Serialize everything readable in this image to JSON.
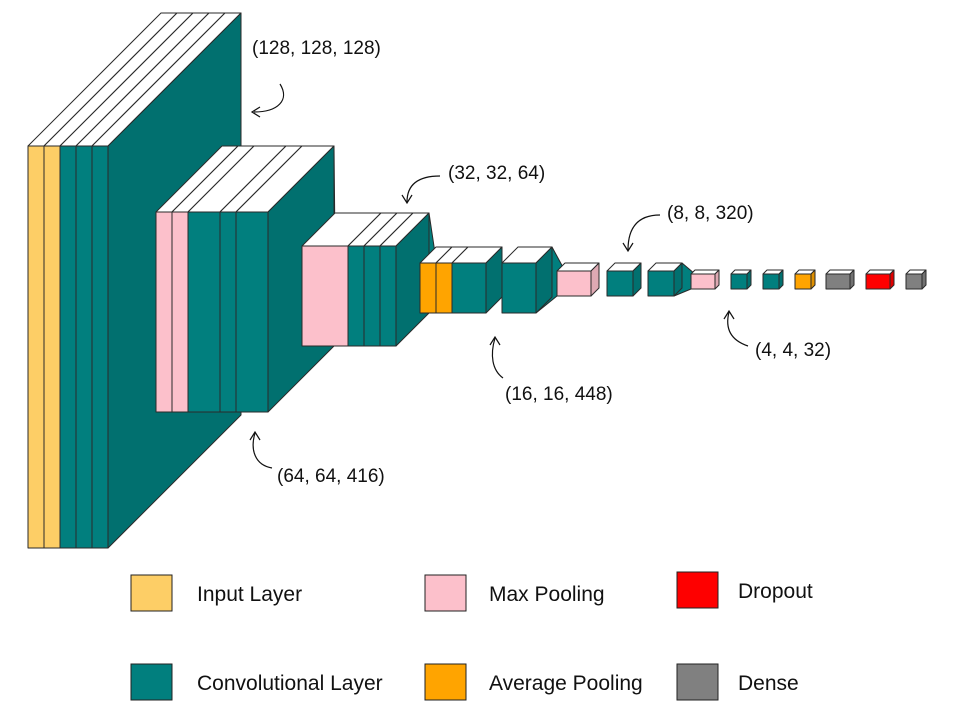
{
  "colors": {
    "input": "#FDCE66",
    "conv": "#017F7E",
    "maxpool": "#FCC0CB",
    "avgpool": "#FFA400",
    "dropout": "#FE0000",
    "dense": "#808080"
  },
  "dimension_labels": [
    "(128, 128, 128)",
    "(64, 64, 416)",
    "(32, 32, 64)",
    "(16, 16, 448)",
    "(8, 8, 320)",
    "(4, 4, 32)"
  ],
  "legend": [
    {
      "label": "Input Layer",
      "color_key": "input"
    },
    {
      "label": "Max Pooling",
      "color_key": "maxpool"
    },
    {
      "label": "Dropout",
      "color_key": "dropout"
    },
    {
      "label": "Convolutional Layer",
      "color_key": "conv"
    },
    {
      "label": "Average Pooling",
      "color_key": "avgpool"
    },
    {
      "label": "Dense",
      "color_key": "dense"
    }
  ],
  "layers": [
    {
      "type": "input"
    },
    {
      "type": "input"
    },
    {
      "type": "conv"
    },
    {
      "type": "conv"
    },
    {
      "type": "conv"
    },
    {
      "type": "maxpool"
    },
    {
      "type": "maxpool"
    },
    {
      "type": "conv"
    },
    {
      "type": "conv"
    },
    {
      "type": "conv"
    },
    {
      "type": "maxpool"
    },
    {
      "type": "conv"
    },
    {
      "type": "conv"
    },
    {
      "type": "conv"
    },
    {
      "type": "avgpool"
    },
    {
      "type": "conv"
    },
    {
      "type": "conv"
    },
    {
      "type": "maxpool"
    },
    {
      "type": "conv"
    },
    {
      "type": "conv"
    },
    {
      "type": "maxpool"
    },
    {
      "type": "conv"
    },
    {
      "type": "conv"
    },
    {
      "type": "avgpool"
    },
    {
      "type": "dense"
    },
    {
      "type": "dropout"
    },
    {
      "type": "dense"
    }
  ]
}
